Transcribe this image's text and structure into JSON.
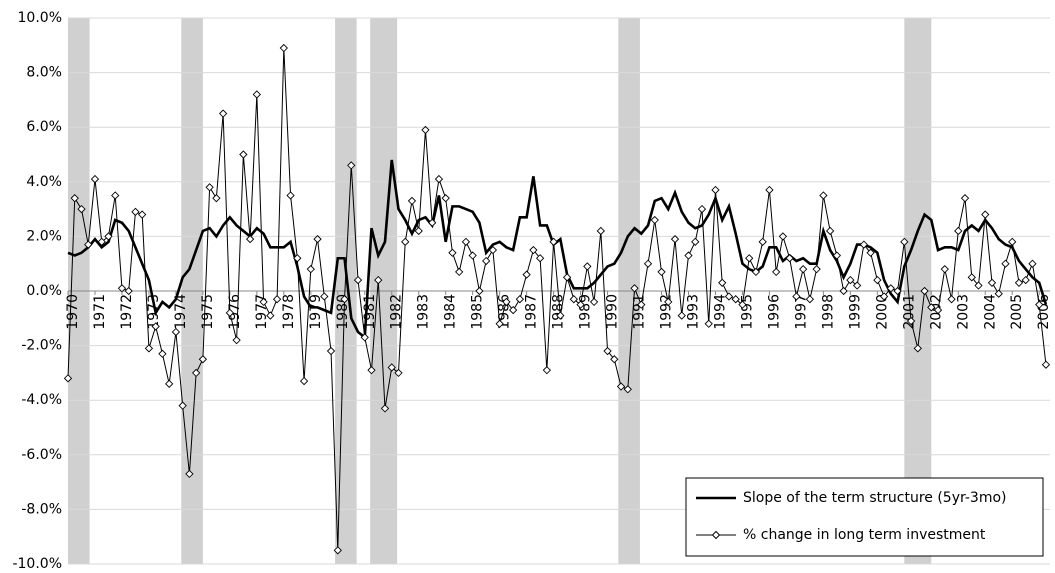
{
  "chart_data": {
    "type": "line",
    "x": [
      1970,
      1970.25,
      1970.5,
      1970.75,
      1971,
      1971.25,
      1971.5,
      1971.75,
      1972,
      1972.25,
      1972.5,
      1972.75,
      1973,
      1973.25,
      1973.5,
      1973.75,
      1974,
      1974.25,
      1974.5,
      1974.75,
      1975,
      1975.25,
      1975.5,
      1975.75,
      1976,
      1976.25,
      1976.5,
      1976.75,
      1977,
      1977.25,
      1977.5,
      1977.75,
      1978,
      1978.25,
      1978.5,
      1978.75,
      1979,
      1979.25,
      1979.5,
      1979.75,
      1980,
      1980.25,
      1980.5,
      1980.75,
      1981,
      1981.25,
      1981.5,
      1981.75,
      1982,
      1982.25,
      1982.5,
      1982.75,
      1983,
      1983.25,
      1983.5,
      1983.75,
      1984,
      1984.25,
      1984.5,
      1984.75,
      1985,
      1985.25,
      1985.5,
      1985.75,
      1986,
      1986.25,
      1986.5,
      1986.75,
      1987,
      1987.25,
      1987.5,
      1987.75,
      1988,
      1988.25,
      1988.5,
      1988.75,
      1989,
      1989.25,
      1989.5,
      1989.75,
      1990,
      1990.25,
      1990.5,
      1990.75,
      1991,
      1991.25,
      1991.5,
      1991.75,
      1992,
      1992.25,
      1992.5,
      1992.75,
      1993,
      1993.25,
      1993.5,
      1993.75,
      1994,
      1994.25,
      1994.5,
      1994.75,
      1995,
      1995.25,
      1995.5,
      1995.75,
      1996,
      1996.25,
      1996.5,
      1996.75,
      1997,
      1997.25,
      1997.5,
      1997.75,
      1998,
      1998.25,
      1998.5,
      1998.75,
      1999,
      1999.25,
      1999.5,
      1999.75,
      2000,
      2000.25,
      2000.5,
      2000.75,
      2001,
      2001.25,
      2001.5,
      2001.75,
      2002,
      2002.25,
      2002.5,
      2002.75,
      2003,
      2003.25,
      2003.5,
      2003.75,
      2004,
      2004.25,
      2004.5,
      2004.75,
      2005,
      2005.25,
      2005.5,
      2005.75,
      2006,
      2006.25
    ],
    "series": [
      {
        "name": "Slope of the term structure (5yr-3mo)",
        "color": "#000000",
        "values": [
          1.4,
          1.3,
          1.4,
          1.6,
          1.9,
          1.6,
          1.8,
          2.6,
          2.5,
          2.2,
          1.6,
          1.0,
          0.4,
          -0.8,
          -0.4,
          -0.6,
          -0.3,
          0.5,
          0.8,
          1.5,
          2.2,
          2.3,
          2.0,
          2.4,
          2.7,
          2.4,
          2.2,
          2.0,
          2.3,
          2.1,
          1.6,
          1.6,
          1.6,
          1.8,
          0.9,
          -0.2,
          -0.6,
          -0.6,
          -0.7,
          -0.8,
          1.2,
          1.2,
          -1.0,
          -1.5,
          -1.7,
          2.3,
          1.3,
          1.8,
          4.8,
          3.0,
          2.6,
          2.1,
          2.6,
          2.7,
          2.4,
          3.5,
          1.8,
          3.1,
          3.1,
          3.0,
          2.9,
          2.5,
          1.4,
          1.7,
          1.8,
          1.6,
          1.5,
          2.7,
          2.7,
          4.2,
          2.4,
          2.4,
          1.7,
          1.9,
          0.6,
          0.1,
          0.1,
          0.1,
          0.3,
          0.6,
          0.9,
          1.0,
          1.4,
          2.0,
          2.3,
          2.1,
          2.4,
          3.3,
          3.4,
          3.0,
          3.6,
          2.9,
          2.5,
          2.3,
          2.4,
          2.8,
          3.4,
          2.6,
          3.1,
          2.1,
          1.0,
          0.8,
          0.7,
          0.9,
          1.6,
          1.6,
          1.1,
          1.3,
          1.1,
          1.2,
          1.0,
          1.0,
          2.2,
          1.5,
          1.1,
          0.5,
          1.0,
          1.7,
          1.7,
          1.6,
          1.4,
          0.4,
          -0.1,
          -0.4,
          0.9,
          1.5,
          2.2,
          2.8,
          2.6,
          1.5,
          1.6,
          1.6,
          1.5,
          2.2,
          2.4,
          2.2,
          2.6,
          2.3,
          1.9,
          1.7,
          1.6,
          1.1,
          0.8,
          0.5,
          0.3,
          -0.5
        ]
      },
      {
        "name": "% change in long term investment",
        "color": "#000000",
        "values": [
          -3.2,
          3.4,
          3.0,
          1.7,
          4.1,
          1.8,
          2.0,
          3.5,
          0.1,
          0.0,
          2.9,
          2.8,
          -2.1,
          -1.3,
          -2.3,
          -3.4,
          -1.5,
          -4.2,
          -6.7,
          -3.0,
          -2.5,
          3.8,
          3.4,
          6.5,
          -0.8,
          -1.8,
          5.0,
          1.9,
          7.2,
          -0.4,
          -0.9,
          -0.3,
          8.9,
          3.5,
          1.2,
          -3.3,
          0.8,
          1.9,
          -0.2,
          -2.2,
          -9.5,
          -0.3,
          4.6,
          0.4,
          -1.7,
          -2.9,
          0.4,
          -4.3,
          -2.8,
          -3.0,
          1.8,
          3.3,
          2.2,
          5.9,
          2.5,
          4.1,
          3.4,
          1.4,
          0.7,
          1.8,
          1.3,
          0.0,
          1.1,
          1.5,
          -1.2,
          -0.4,
          -0.7,
          -0.3,
          0.6,
          1.5,
          1.2,
          -2.9,
          1.8,
          -0.9,
          0.5,
          -0.3,
          -0.5,
          0.9,
          -0.4,
          2.2,
          -2.2,
          -2.5,
          -3.5,
          -3.6,
          0.1,
          -0.5,
          1.0,
          2.6,
          0.7,
          -0.4,
          1.9,
          -0.9,
          1.3,
          1.8,
          3.0,
          -1.2,
          3.7,
          0.3,
          -0.2,
          -0.3,
          -0.5,
          1.2,
          0.7,
          1.8,
          3.7,
          0.7,
          2.0,
          1.2,
          -0.2,
          0.8,
          -0.3,
          0.8,
          3.5,
          2.2,
          1.3,
          0.0,
          0.4,
          0.2,
          1.7,
          1.4,
          0.4,
          -0.2,
          0.1,
          0.0,
          1.8,
          -1.1,
          -2.1,
          0.0,
          -0.6,
          -0.7,
          0.8,
          -0.3,
          2.2,
          3.4,
          0.5,
          0.2,
          2.8,
          0.3,
          -0.1,
          1.0,
          1.8,
          0.3,
          0.4,
          1.0,
          -0.5,
          -2.7
        ]
      }
    ],
    "shaded_periods": [
      [
        1970,
        1970.8
      ],
      [
        1974.2,
        1975.0
      ],
      [
        1979.9,
        1980.7
      ],
      [
        1981.2,
        1982.2
      ],
      [
        1990.4,
        1991.2
      ],
      [
        2001.0,
        2002.0
      ]
    ],
    "shade_color": "#d0d0d0",
    "xlim": [
      1970,
      2006.4
    ],
    "xticks": [
      1970,
      1971,
      1972,
      1973,
      1974,
      1975,
      1976,
      1977,
      1978,
      1979,
      1980,
      1981,
      1982,
      1983,
      1984,
      1985,
      1986,
      1987,
      1988,
      1989,
      1990,
      1991,
      1992,
      1993,
      1994,
      1995,
      1996,
      1997,
      1998,
      1999,
      2000,
      2001,
      2002,
      2003,
      2004,
      2005,
      2006
    ],
    "ylim": [
      -10,
      10
    ],
    "yticks": [
      {
        "value": -10,
        "label": "-10.0%"
      },
      {
        "value": -8,
        "label": "-8.0%"
      },
      {
        "value": -6,
        "label": "-6.0%"
      },
      {
        "value": -4,
        "label": "-4.0%"
      },
      {
        "value": -2,
        "label": "-2.0%"
      },
      {
        "value": 0,
        "label": "0.0%"
      },
      {
        "value": 2,
        "label": "2.0%"
      },
      {
        "value": 4,
        "label": "4.0%"
      },
      {
        "value": 6,
        "label": "6.0%"
      },
      {
        "value": 8,
        "label": "8.0%"
      },
      {
        "value": 10,
        "label": "10.0%"
      }
    ],
    "grid": true,
    "legend": "lower right"
  }
}
